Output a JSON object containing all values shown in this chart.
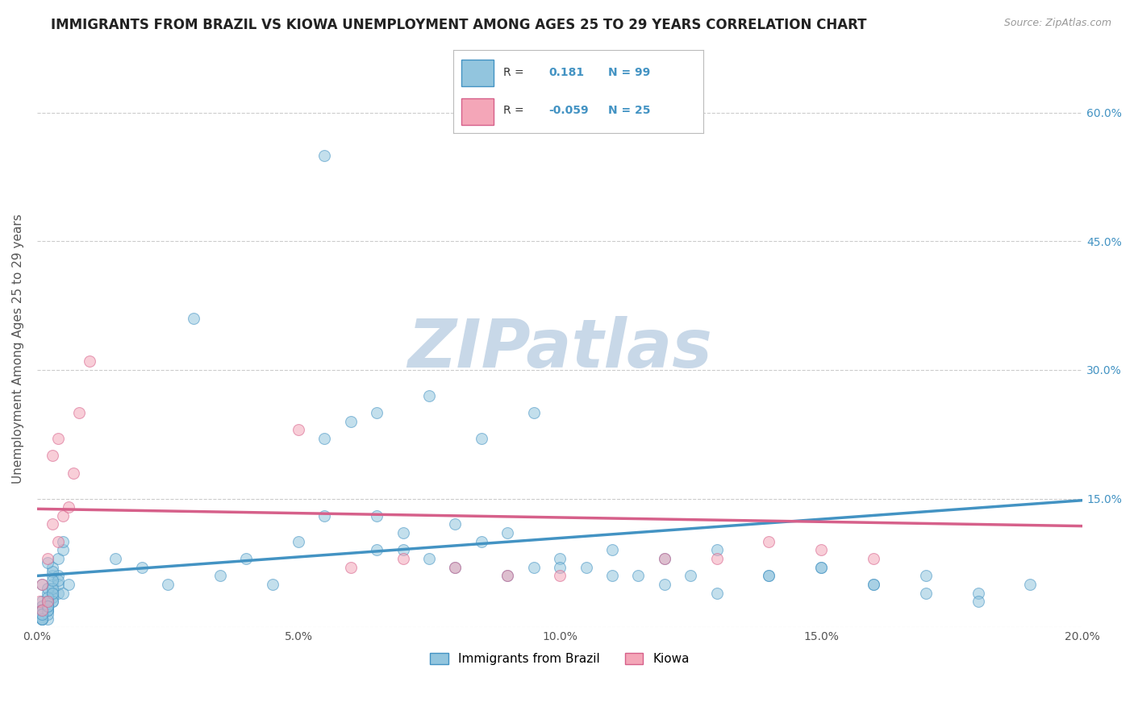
{
  "title": "IMMIGRANTS FROM BRAZIL VS KIOWA UNEMPLOYMENT AMONG AGES 25 TO 29 YEARS CORRELATION CHART",
  "source_text": "Source: ZipAtlas.com",
  "ylabel": "Unemployment Among Ages 25 to 29 years",
  "xlim": [
    0.0,
    0.2
  ],
  "ylim": [
    0.0,
    0.65
  ],
  "xticks": [
    0.0,
    0.05,
    0.1,
    0.15,
    0.2
  ],
  "xtick_labels": [
    "0.0%",
    "5.0%",
    "10.0%",
    "15.0%",
    "20.0%"
  ],
  "yticks": [
    0.0,
    0.15,
    0.3,
    0.45,
    0.6
  ],
  "ytick_labels": [
    "",
    "15.0%",
    "30.0%",
    "45.0%",
    "60.0%"
  ],
  "blue_R": 0.181,
  "blue_N": 99,
  "pink_R": -0.059,
  "pink_N": 25,
  "blue_color": "#92c5de",
  "pink_color": "#f4a6b8",
  "blue_line_color": "#4393c3",
  "pink_line_color": "#d6608a",
  "watermark_text": "ZIPatlas",
  "legend_label_blue": "Immigrants from Brazil",
  "legend_label_pink": "Kiowa",
  "blue_scatter_x": [
    0.0005,
    0.001,
    0.001,
    0.002,
    0.002,
    0.002,
    0.002,
    0.003,
    0.003,
    0.003,
    0.003,
    0.003,
    0.004,
    0.004,
    0.004,
    0.004,
    0.005,
    0.005,
    0.005,
    0.006,
    0.001,
    0.002,
    0.002,
    0.001,
    0.001,
    0.003,
    0.002,
    0.004,
    0.003,
    0.002,
    0.001,
    0.002,
    0.003,
    0.001,
    0.002,
    0.001,
    0.002,
    0.003,
    0.001,
    0.002,
    0.003,
    0.001,
    0.002,
    0.001,
    0.002,
    0.003,
    0.001,
    0.002,
    0.001,
    0.002,
    0.015,
    0.02,
    0.025,
    0.03,
    0.035,
    0.04,
    0.045,
    0.05,
    0.055,
    0.055,
    0.06,
    0.065,
    0.065,
    0.07,
    0.075,
    0.075,
    0.08,
    0.085,
    0.085,
    0.09,
    0.095,
    0.095,
    0.1,
    0.105,
    0.11,
    0.115,
    0.12,
    0.125,
    0.13,
    0.14,
    0.15,
    0.16,
    0.17,
    0.18,
    0.19,
    0.055,
    0.065,
    0.07,
    0.08,
    0.09,
    0.1,
    0.11,
    0.12,
    0.13,
    0.14,
    0.15,
    0.16,
    0.17,
    0.18
  ],
  "blue_scatter_y": [
    0.02,
    0.03,
    0.05,
    0.02,
    0.03,
    0.025,
    0.04,
    0.05,
    0.06,
    0.03,
    0.04,
    0.07,
    0.06,
    0.08,
    0.04,
    0.05,
    0.09,
    0.1,
    0.04,
    0.05,
    0.02,
    0.01,
    0.03,
    0.015,
    0.025,
    0.035,
    0.045,
    0.055,
    0.065,
    0.075,
    0.01,
    0.02,
    0.03,
    0.01,
    0.03,
    0.02,
    0.025,
    0.045,
    0.015,
    0.035,
    0.055,
    0.01,
    0.025,
    0.02,
    0.015,
    0.04,
    0.01,
    0.02,
    0.015,
    0.025,
    0.08,
    0.07,
    0.05,
    0.36,
    0.06,
    0.08,
    0.05,
    0.1,
    0.13,
    0.22,
    0.24,
    0.09,
    0.25,
    0.11,
    0.08,
    0.27,
    0.12,
    0.1,
    0.22,
    0.11,
    0.07,
    0.25,
    0.08,
    0.07,
    0.09,
    0.06,
    0.08,
    0.06,
    0.09,
    0.06,
    0.07,
    0.05,
    0.06,
    0.04,
    0.05,
    0.55,
    0.13,
    0.09,
    0.07,
    0.06,
    0.07,
    0.06,
    0.05,
    0.04,
    0.06,
    0.07,
    0.05,
    0.04,
    0.03
  ],
  "pink_scatter_x": [
    0.0005,
    0.001,
    0.001,
    0.002,
    0.002,
    0.003,
    0.003,
    0.004,
    0.004,
    0.005,
    0.006,
    0.007,
    0.008,
    0.01,
    0.05,
    0.06,
    0.07,
    0.08,
    0.09,
    0.1,
    0.12,
    0.13,
    0.14,
    0.15,
    0.16
  ],
  "pink_scatter_y": [
    0.03,
    0.05,
    0.02,
    0.08,
    0.03,
    0.12,
    0.2,
    0.22,
    0.1,
    0.13,
    0.14,
    0.18,
    0.25,
    0.31,
    0.23,
    0.07,
    0.08,
    0.07,
    0.06,
    0.06,
    0.08,
    0.08,
    0.1,
    0.09,
    0.08
  ],
  "blue_trend_x": [
    0.0,
    0.2
  ],
  "blue_trend_y": [
    0.06,
    0.148
  ],
  "pink_trend_x": [
    0.0,
    0.2
  ],
  "pink_trend_y": [
    0.138,
    0.118
  ],
  "grid_color": "#cccccc",
  "bg_color": "#ffffff",
  "title_color": "#222222",
  "title_fontsize": 12,
  "label_fontsize": 11,
  "tick_fontsize": 10,
  "watermark_color": "#c8d8e8",
  "watermark_fontsize": 60,
  "right_ytick_color": "#4393c3"
}
